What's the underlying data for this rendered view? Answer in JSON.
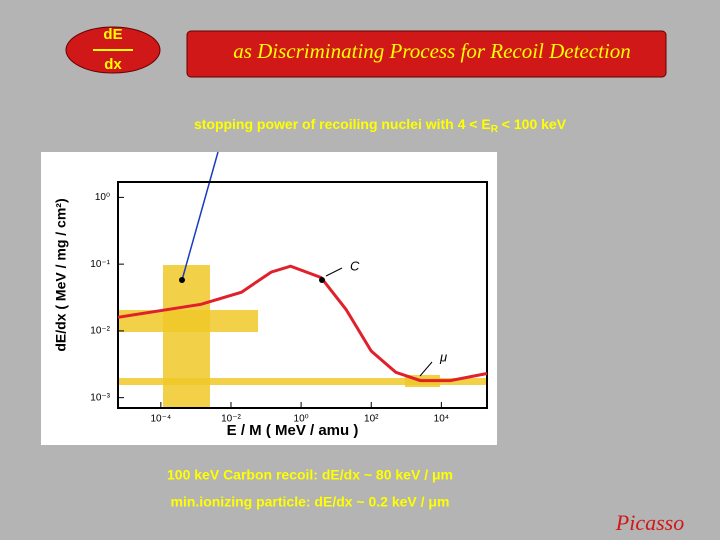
{
  "slide": {
    "badge_top": "dE",
    "badge_bottom": "dx",
    "title": "as Discriminating Process for Recoil Detection",
    "subtitle": [
      "stopping power of recoiling nuclei with 4 < E",
      "R",
      " < 100 keV"
    ],
    "notes": [
      "100 keV Carbon recoil:  dE/dx ~ 80 keV / μm",
      "min.ionizing particle: dE/dx ~ 0.2 keV / μm"
    ],
    "logo": "Picasso"
  },
  "chart_data": {
    "type": "line",
    "xlabel": "E / M ( MeV / amu )",
    "ylabel": "dE/dx ( MeV / mg / cm²)",
    "x": [
      6e-06,
      0.0014,
      0.02,
      0.14,
      0.5,
      3.7,
      19,
      100,
      500,
      2500,
      18000,
      200000
    ],
    "values": [
      0.016,
      0.025,
      0.038,
      0.076,
      0.093,
      0.063,
      0.021,
      0.005,
      0.0024,
      0.0018,
      0.0018,
      0.0023
    ],
    "color": "#e0202a",
    "log_x": true,
    "log_y": true,
    "xlim": [
      6e-06,
      200000
    ],
    "ylim": [
      0.0007,
      1.7
    ],
    "xticks": [
      {
        "value": 0.0001,
        "label": "10⁻⁴"
      },
      {
        "value": 0.01,
        "label": "10⁻²"
      },
      {
        "value": 1,
        "label": "10⁰"
      },
      {
        "value": 100,
        "label": "10²"
      },
      {
        "value": 10000,
        "label": "10⁴"
      }
    ],
    "yticks": [
      {
        "value": 0.001,
        "label": "10⁻³"
      },
      {
        "value": 0.01,
        "label": "10⁻²"
      },
      {
        "value": 0.1,
        "label": "10⁻¹"
      },
      {
        "value": 1,
        "label": "10⁰"
      }
    ],
    "annotations": [
      "C",
      "μ"
    ]
  }
}
